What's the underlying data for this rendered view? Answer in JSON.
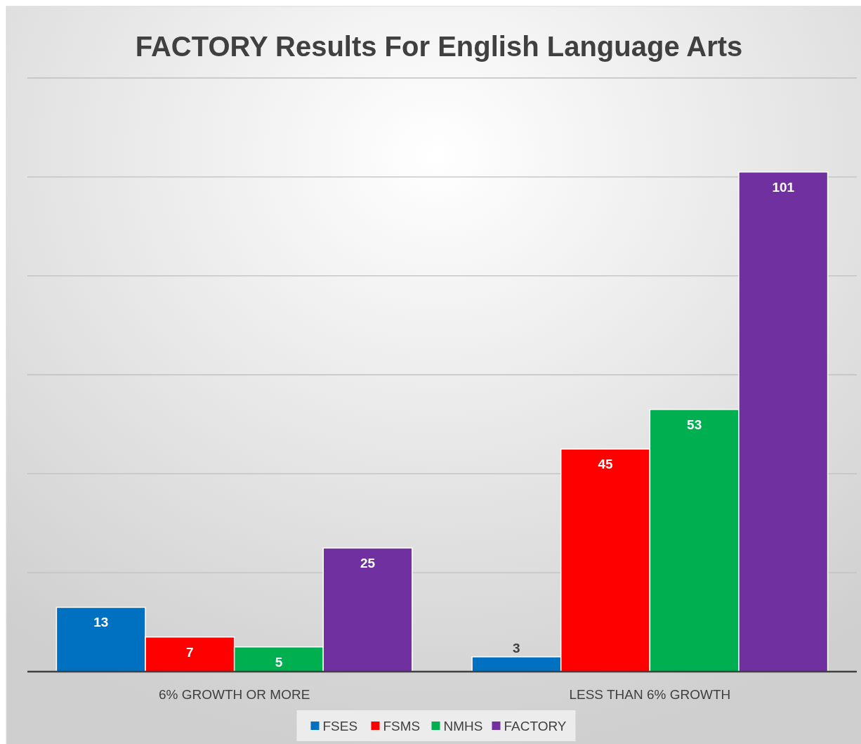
{
  "chart_data": {
    "type": "bar",
    "title": "FACTORY Results For English Language Arts",
    "categories": [
      "6% GROWTH OR MORE",
      "LESS THAN 6% GROWTH"
    ],
    "series": [
      {
        "name": "FSES",
        "color": "#0070c0",
        "values": [
          13,
          3
        ]
      },
      {
        "name": "FSMS",
        "color": "#ff0000",
        "values": [
          7,
          45
        ]
      },
      {
        "name": "NMHS",
        "color": "#00b050",
        "values": [
          5,
          53
        ]
      },
      {
        "name": "FACTORY",
        "color": "#7030a0",
        "values": [
          25,
          101
        ]
      }
    ],
    "ylim": [
      0,
      120
    ],
    "yticks": [
      {
        "value": 0,
        "label": null
      },
      {
        "value": 20,
        "label": null
      },
      {
        "value": 40,
        "label": null
      },
      {
        "value": 60,
        "label": null
      },
      {
        "value": 80,
        "label": null
      },
      {
        "value": 100,
        "label": null
      },
      {
        "value": 120,
        "label": null
      }
    ],
    "tick_labels": "x",
    "grid": "y",
    "legend": "bottom",
    "data_labels": true
  }
}
